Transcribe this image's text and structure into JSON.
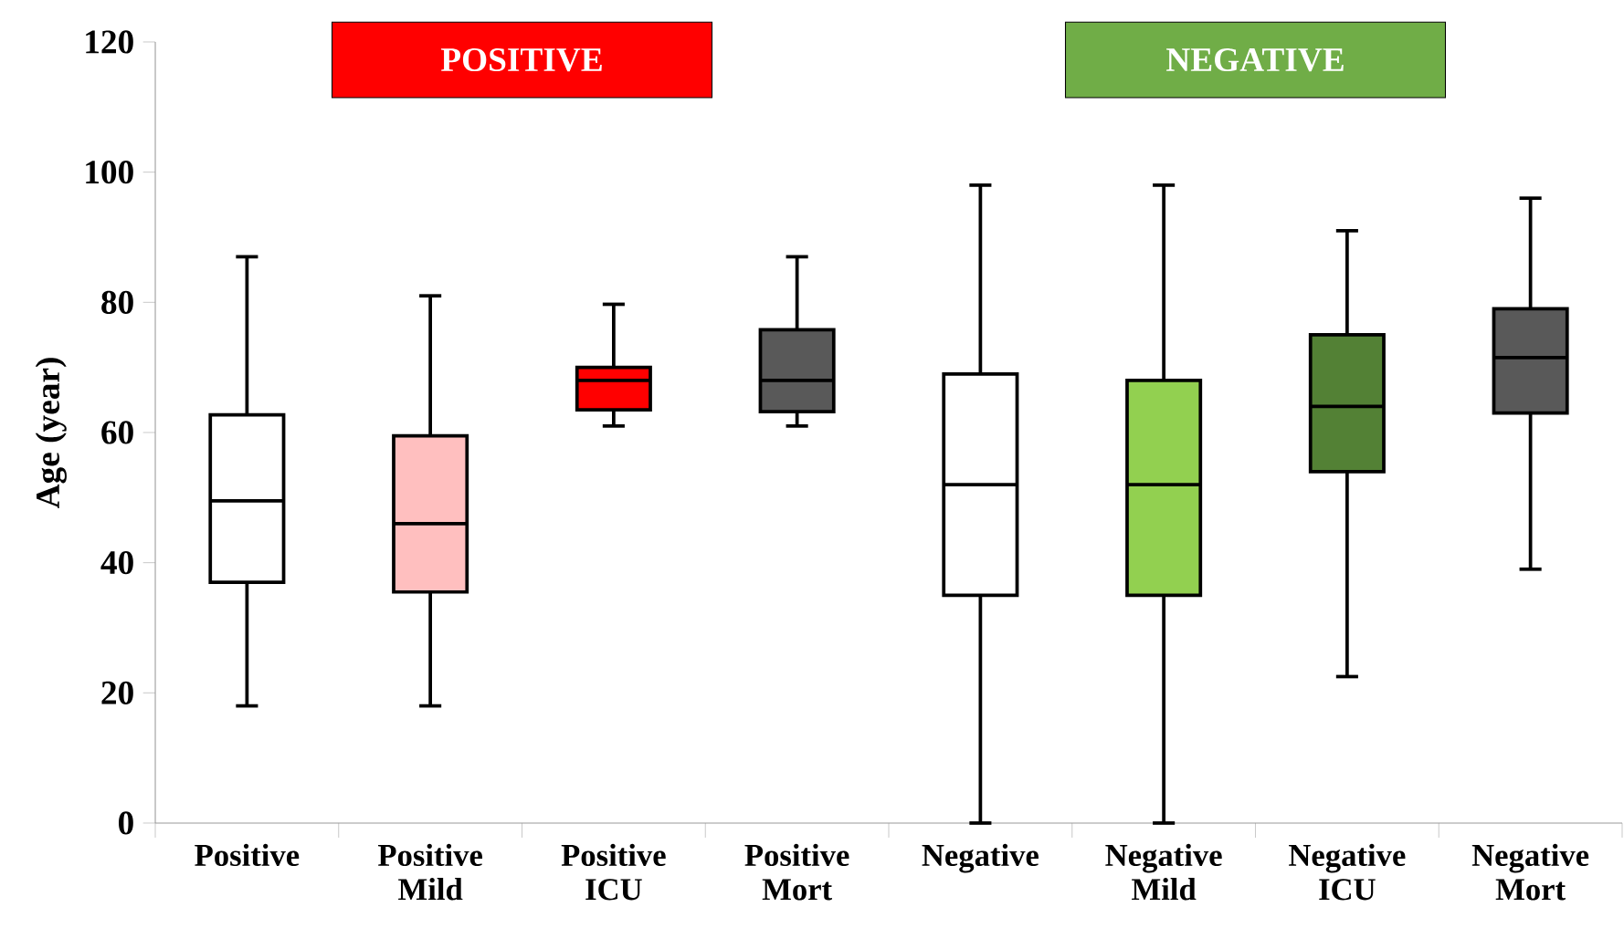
{
  "chart_data": {
    "type": "box",
    "ylabel": "Age (year)",
    "categories": [
      "Positive",
      "Positive Mild",
      "Positive ICU",
      "Positive Mort",
      "Negative",
      "Negative Mild",
      "Negative ICU",
      "Negative Mort"
    ],
    "boxes": [
      {
        "low": 18,
        "q1": 37,
        "median": 49.5,
        "q3": 62.7,
        "high": 87
      },
      {
        "low": 18,
        "q1": 35.5,
        "median": 46,
        "q3": 59.5,
        "high": 81
      },
      {
        "low": 61,
        "q1": 63.5,
        "median": 68,
        "q3": 70,
        "high": 79.7
      },
      {
        "low": 61,
        "q1": 63.2,
        "median": 68,
        "q3": 75.8,
        "high": 87
      },
      {
        "low": 0,
        "q1": 35,
        "median": 52,
        "q3": 69,
        "high": 98
      },
      {
        "low": 0,
        "q1": 35,
        "median": 52,
        "q3": 68,
        "high": 98
      },
      {
        "low": 22.5,
        "q1": 54,
        "median": 64,
        "q3": 75,
        "high": 91
      },
      {
        "low": 39,
        "q1": 63,
        "median": 71.5,
        "q3": 79,
        "high": 96
      }
    ],
    "colors": [
      "#ffffff",
      "#ffbfbf",
      "#ff0000",
      "#595959",
      "#ffffff",
      "#92d050",
      "#538135",
      "#595959"
    ],
    "ylim": [
      0,
      120
    ],
    "yticks": [
      0,
      20,
      40,
      60,
      80,
      100,
      120
    ],
    "annotations": [
      "POSITIVE",
      "NEGATIVE"
    ]
  }
}
